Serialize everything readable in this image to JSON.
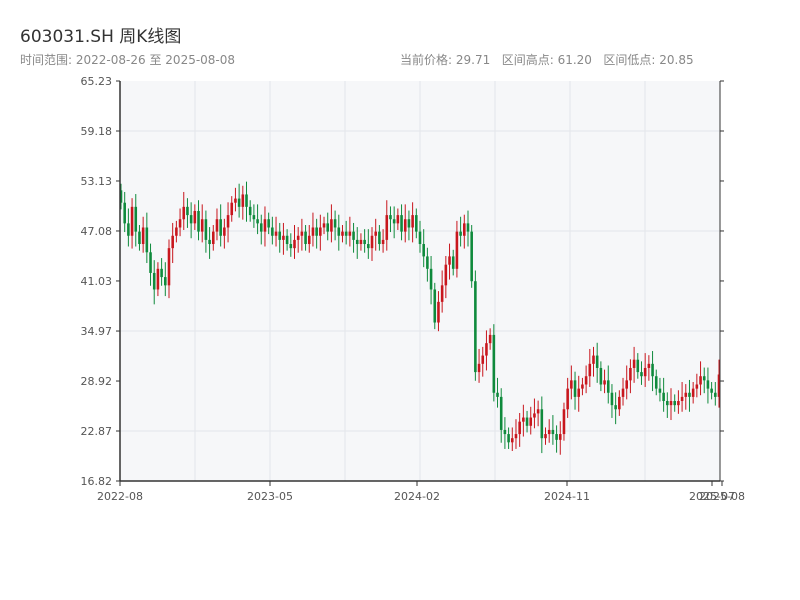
{
  "header": {
    "title": "603031.SH 周K线图",
    "range_label": "时间范围:",
    "range_start": "2022-08-26",
    "range_sep": "至",
    "range_end": "2025-08-08",
    "stats": [
      {
        "label": "当前价格:",
        "value": "29.71"
      },
      {
        "label": "区间高点:",
        "value": "61.20"
      },
      {
        "label": "区间低点:",
        "value": "20.85"
      }
    ]
  },
  "colors": {
    "up": "#c8161d",
    "down": "#0f8a3c",
    "grid": "#e3e6ea",
    "plot_bg": "#f6f7f9",
    "axis": "#333333"
  },
  "chart_data": {
    "type": "candlestick",
    "title": "603031.SH 周K线图",
    "ylim": [
      16.82,
      65.23
    ],
    "y_ticks": [
      "16.82",
      "22.87",
      "28.92",
      "34.97",
      "41.03",
      "47.08",
      "53.13",
      "59.18",
      "65.23"
    ],
    "x_ticks": [
      "2022-08",
      "2023-05",
      "2024-02",
      "2024-11",
      "2025-07",
      "2025-08"
    ],
    "grid": true,
    "closes": [
      50.5,
      48.0,
      46.5,
      50.0,
      47.0,
      45.5,
      47.5,
      44.5,
      42.0,
      40.0,
      42.5,
      41.5,
      40.5,
      45.0,
      46.5,
      47.5,
      48.5,
      50.0,
      49.0,
      48.0,
      49.5,
      47.0,
      48.5,
      46.0,
      45.5,
      47.0,
      48.5,
      46.5,
      47.5,
      49.0,
      50.5,
      51.0,
      50.0,
      51.5,
      50.0,
      49.0,
      48.5,
      48.0,
      47.0,
      48.5,
      47.5,
      46.5,
      47.0,
      46.0,
      46.5,
      45.5,
      45.0,
      46.0,
      46.5,
      47.0,
      45.5,
      46.5,
      47.5,
      46.5,
      47.5,
      48.0,
      47.0,
      48.5,
      47.5,
      46.5,
      47.0,
      46.5,
      47.0,
      46.0,
      45.5,
      46.0,
      45.5,
      45.0,
      46.5,
      47.0,
      45.5,
      46.0,
      49.0,
      48.5,
      48.0,
      49.0,
      47.0,
      48.5,
      47.5,
      49.0,
      47.0,
      45.5,
      44.0,
      42.5,
      40.0,
      36.0,
      38.5,
      40.5,
      43.0,
      44.0,
      42.5,
      47.0,
      46.5,
      48.0,
      47.0,
      41.0,
      30.0,
      31.0,
      32.0,
      33.5,
      34.5,
      27.5,
      27.0,
      23.0,
      22.5,
      21.5,
      22.0,
      22.5,
      24.0,
      24.5,
      23.5,
      24.5,
      25.0,
      25.5,
      22.0,
      22.5,
      23.0,
      22.5,
      21.8,
      22.5,
      25.5,
      28.0,
      29.0,
      27.0,
      28.0,
      28.5,
      29.5,
      31.0,
      32.0,
      30.5,
      28.5,
      29.0,
      27.5,
      26.0,
      25.5,
      27.0,
      28.0,
      29.0,
      30.5,
      31.5,
      30.0,
      29.5,
      30.5,
      31.0,
      29.5,
      28.0,
      27.5,
      26.5,
      26.0,
      26.5,
      26.0,
      26.5,
      27.0,
      27.5,
      27.0,
      28.0,
      28.5,
      29.5,
      29.0,
      28.0,
      27.5,
      27.0,
      29.71
    ]
  }
}
